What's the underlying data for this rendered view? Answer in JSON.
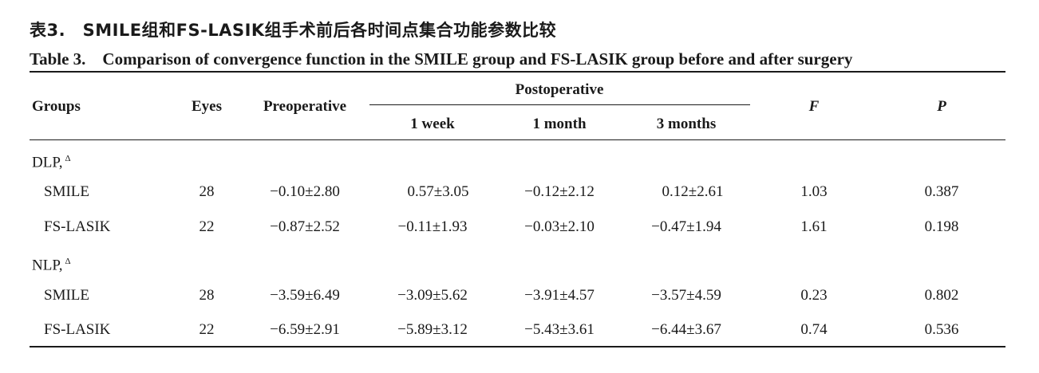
{
  "title_cn": "表3.　SMILE组和FS-LASIK组手术前后各时间点集合功能参数比较",
  "title_en": "Table 3.　Comparison of convergence function in the SMILE group and FS-LASIK group before and after surgery",
  "headers": {
    "groups": "Groups",
    "eyes": "Eyes",
    "preoperative": "Preoperative",
    "postoperative": "Postoperative",
    "week1": "1 week",
    "month1": "1 month",
    "months3": "3 months",
    "f": "F",
    "p": "P"
  },
  "sections": [
    {
      "label": "DLP,",
      "mark": "Δ",
      "rows": [
        {
          "group": "SMILE",
          "eyes": "28",
          "pre": "−0.10±2.80",
          "w1": "0.57±3.05",
          "m1": "−0.12±2.12",
          "m3": "0.12±2.61",
          "f": "1.03",
          "p": "0.387"
        },
        {
          "group": "FS-LASIK",
          "eyes": "22",
          "pre": "−0.87±2.52",
          "w1": "−0.11±1.93",
          "m1": "−0.03±2.10",
          "m3": "−0.47±1.94",
          "f": "1.61",
          "p": "0.198"
        }
      ]
    },
    {
      "label": "NLP,",
      "mark": "Δ",
      "rows": [
        {
          "group": "SMILE",
          "eyes": "28",
          "pre": "−3.59±6.49",
          "w1": "−3.09±5.62",
          "m1": "−3.91±4.57",
          "m3": "−3.57±4.59",
          "f": "0.23",
          "p": "0.802"
        },
        {
          "group": "FS-LASIK",
          "eyes": "22",
          "pre": "−6.59±2.91",
          "w1": "−5.89±3.12",
          "m1": "−5.43±3.61",
          "m3": "−6.44±3.67",
          "f": "0.74",
          "p": "0.536"
        }
      ]
    }
  ]
}
